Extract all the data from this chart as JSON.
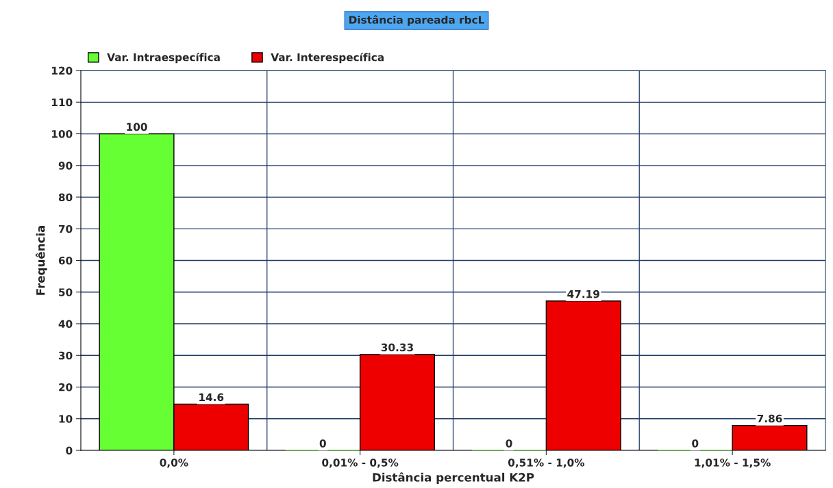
{
  "chart_data": {
    "type": "bar",
    "title": "Distância pareada rbcL",
    "xlabel": "Distância percentual K2P",
    "ylabel": "Frequência",
    "categories": [
      "0,0%",
      "0,01% - 0,5%",
      "0,51% - 1,0%",
      "1,01% - 1,5%"
    ],
    "series": [
      {
        "name": "Var. Intraespecífica",
        "color": "#66ff33",
        "values": [
          100,
          0,
          0,
          0
        ]
      },
      {
        "name": "Var. Interespecífica",
        "color": "#ee0000",
        "values": [
          14.6,
          30.33,
          47.19,
          7.86
        ]
      }
    ],
    "ylim": [
      0,
      120
    ],
    "yticks": [
      0,
      10,
      20,
      30,
      40,
      50,
      60,
      70,
      80,
      90,
      100,
      110,
      120
    ],
    "grid": true,
    "legend": "top left",
    "data_labels": true
  }
}
